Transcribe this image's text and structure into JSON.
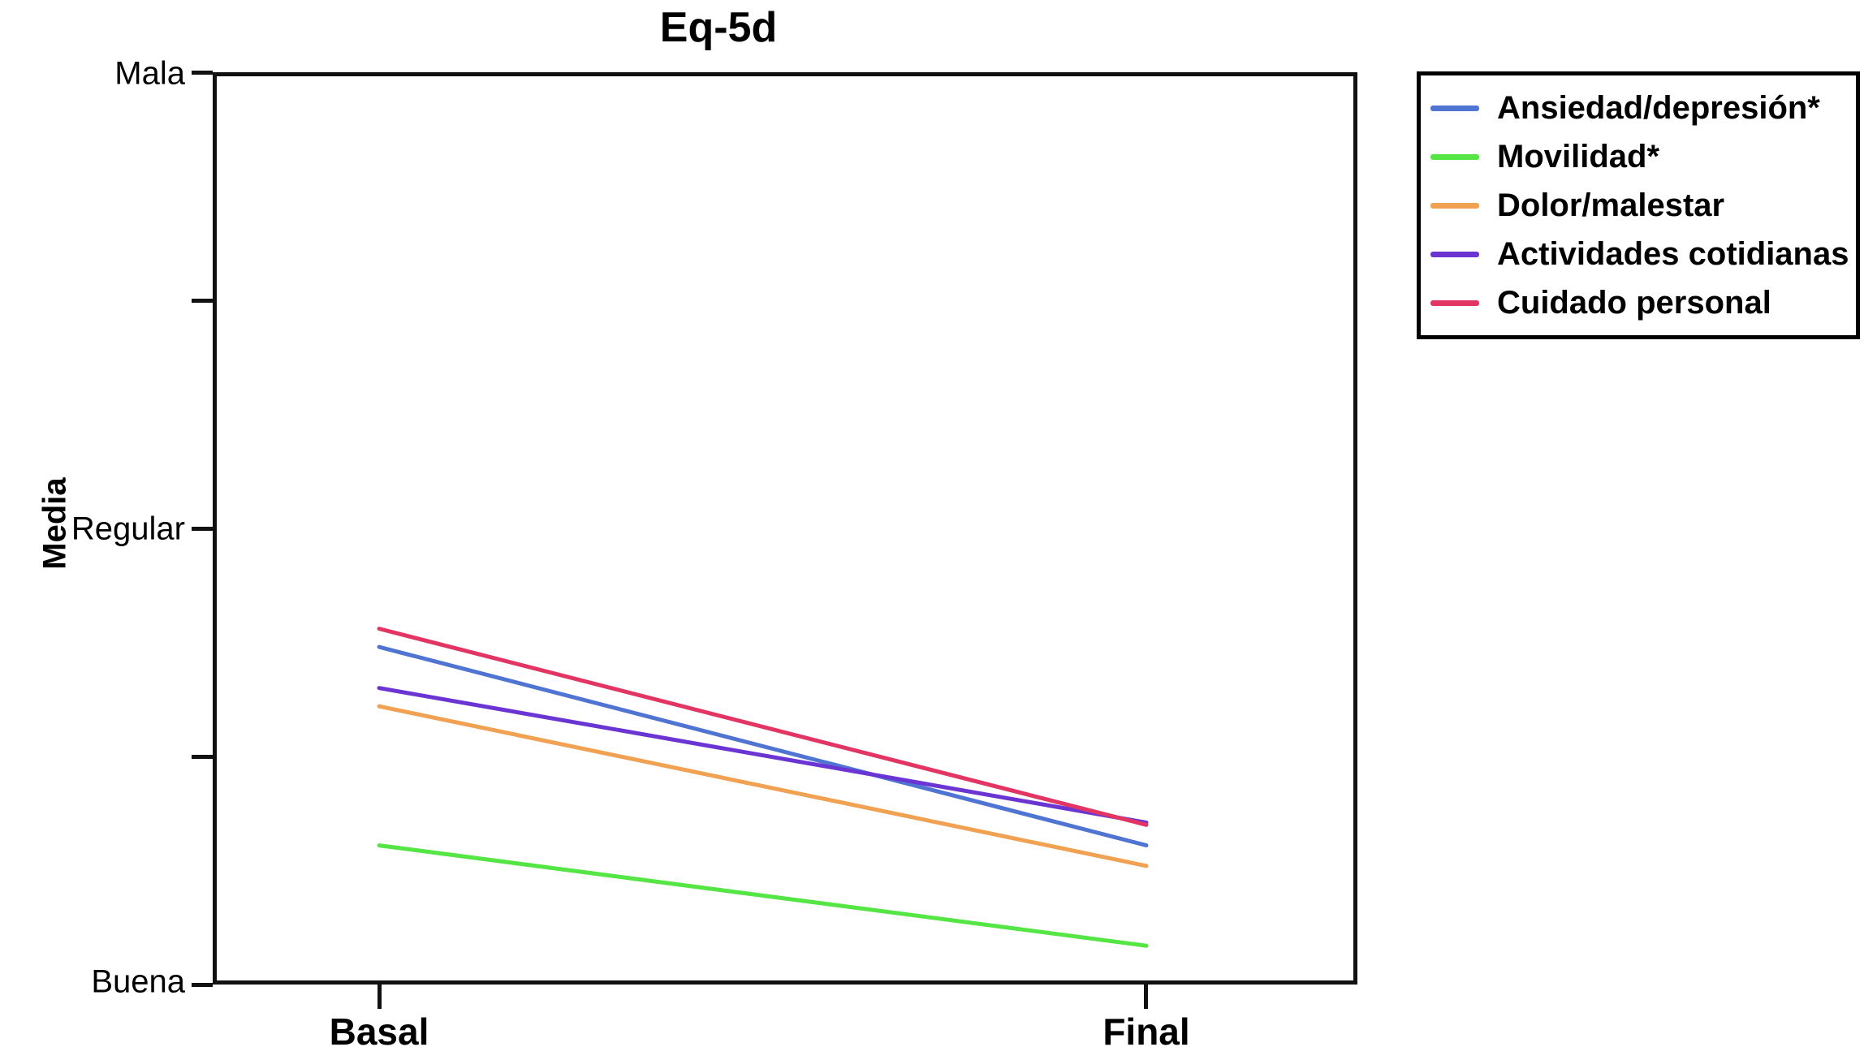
{
  "title": "Eq-5d",
  "y_axis": {
    "label": "Media",
    "tick_labels": {
      "top": "Mala",
      "middle": "Regular",
      "bottom": "Buena"
    }
  },
  "x_axis": {
    "categories": [
      "Basal",
      "Final"
    ]
  },
  "chart_data": {
    "type": "line",
    "title": "Eq-5d",
    "x": [
      "Basal",
      "Final"
    ],
    "xlabel": "",
    "ylabel": "Media",
    "ylim": [
      1,
      5
    ],
    "y_tick_values": [
      1,
      2,
      3,
      4,
      5
    ],
    "y_tick_labels": [
      {
        "value": 5,
        "label": "Mala"
      },
      {
        "value": 3,
        "label": "Regular"
      },
      {
        "value": 1,
        "label": "Buena"
      }
    ],
    "grid": false,
    "legend_position": "outside upper right",
    "series": [
      {
        "name": "Ansiedad/depresión*",
        "color": "#4f74d2",
        "values": [
          2.48,
          1.61
        ]
      },
      {
        "name": "Movilidad*",
        "color": "#55e545",
        "values": [
          1.61,
          1.17
        ]
      },
      {
        "name": "Dolor/malestar",
        "color": "#f0a152",
        "values": [
          2.22,
          1.52
        ]
      },
      {
        "name": "Actividades cotidianas",
        "color": "#6a35d2",
        "values": [
          2.3,
          1.71
        ]
      },
      {
        "name": "Cuidado personal",
        "color": "#e23563",
        "values": [
          2.56,
          1.7
        ]
      }
    ]
  }
}
